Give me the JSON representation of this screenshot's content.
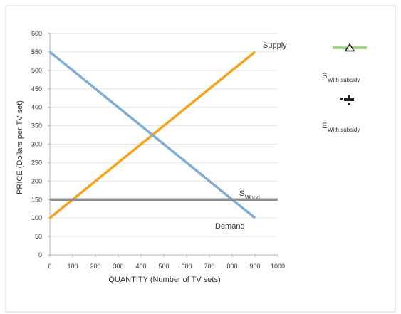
{
  "chart_data": {
    "type": "line",
    "title": "",
    "xlabel": "QUANTITY (Number of TV sets)",
    "ylabel": "PRICE (Dollars per TV set)",
    "xlim": [
      0,
      1000
    ],
    "ylim": [
      0,
      600
    ],
    "x_ticks": [
      0,
      100,
      200,
      300,
      400,
      500,
      600,
      700,
      800,
      900,
      1000
    ],
    "y_ticks": [
      0,
      50,
      100,
      150,
      200,
      250,
      300,
      350,
      400,
      450,
      500,
      550,
      600
    ],
    "grid": true,
    "series": [
      {
        "name": "Supply",
        "color": "#f7a21b",
        "x": [
          0,
          900
        ],
        "y": [
          100,
          550
        ]
      },
      {
        "name": "Demand",
        "color": "#7fadd4",
        "x": [
          0,
          900
        ],
        "y": [
          550,
          100
        ]
      },
      {
        "name": "World",
        "color": "#8f8f8f",
        "x": [
          0,
          1000
        ],
        "y": [
          150,
          150
        ]
      }
    ],
    "annotations": {
      "supply_label": "Supply",
      "demand_label": "Demand",
      "world_S": "S",
      "world_sub": "World"
    },
    "legend": {
      "placement": "right",
      "tools": [
        {
          "icon": "green-line-triangle-icon",
          "color": "#8cd36a",
          "S": "S",
          "sub": "With subsidy"
        },
        {
          "icon": "cross-marker-icon",
          "color": "#222222",
          "S": "E",
          "sub": "With subsidy"
        }
      ]
    }
  }
}
